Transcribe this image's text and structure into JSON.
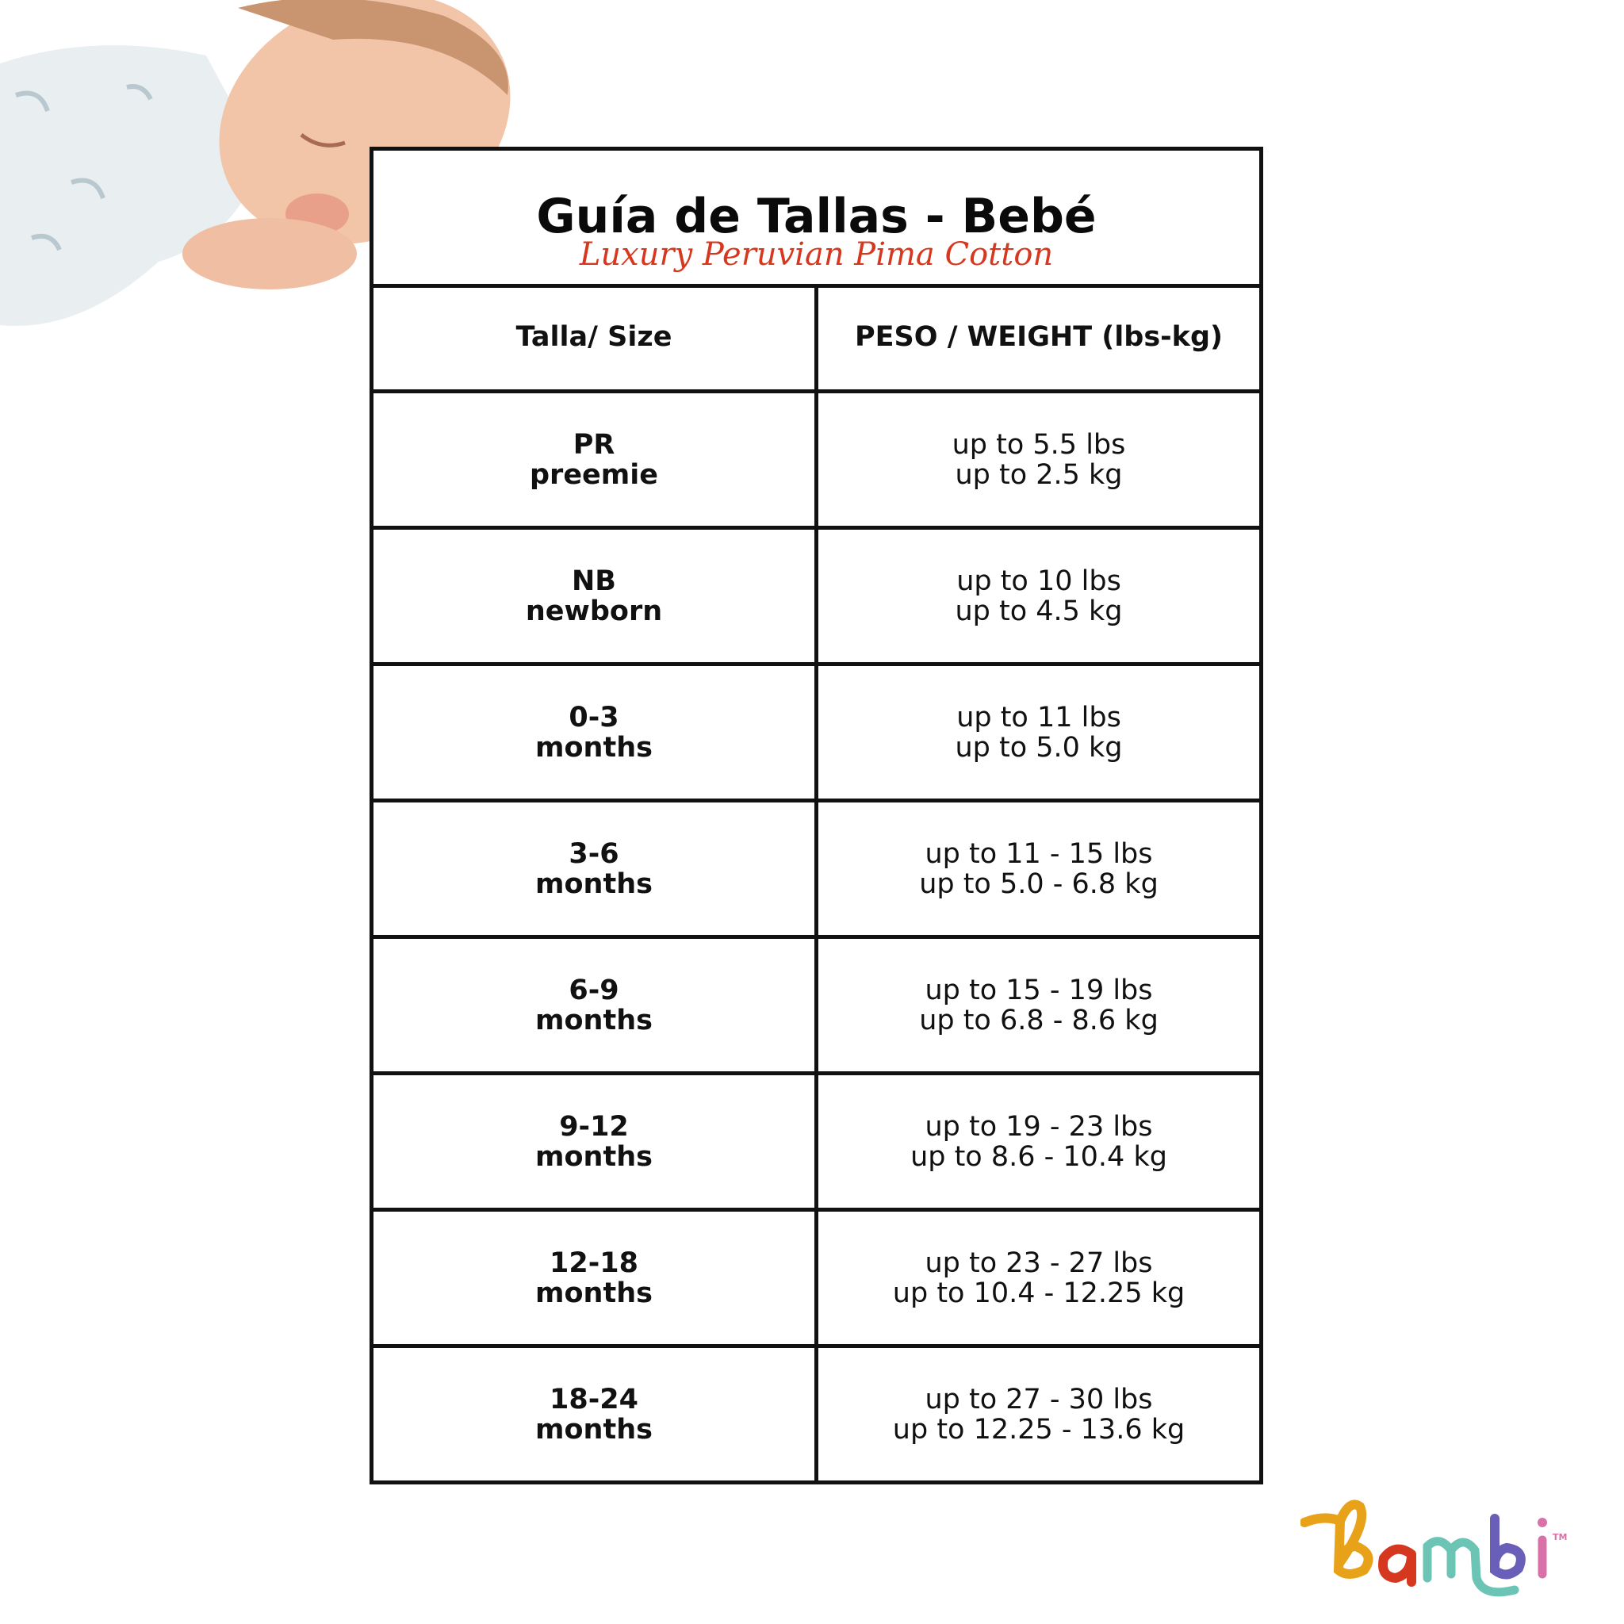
{
  "title": "Guía de Tallas - Bebé",
  "subtitle": "Luxury Peruvian Pima Cotton",
  "headers": {
    "size": "Talla/ Size",
    "weight": "PESO / WEIGHT (lbs-kg)"
  },
  "rows": [
    {
      "size": "PR",
      "size_sub": "preemie",
      "lbs": "up to 5.5 lbs",
      "kg": "up to 2.5 kg"
    },
    {
      "size": "NB",
      "size_sub": "newborn",
      "lbs": "up to 10 lbs",
      "kg": "up to 4.5 kg"
    },
    {
      "size": "0-3",
      "size_sub": "months",
      "lbs": "up to 11 lbs",
      "kg": "up to 5.0 kg"
    },
    {
      "size": "3-6",
      "size_sub": "months",
      "lbs": "up to 11 - 15 lbs",
      "kg": "up to 5.0 - 6.8 kg"
    },
    {
      "size": "6-9",
      "size_sub": "months",
      "lbs": "up to 15 - 19 lbs",
      "kg": "up to 6.8 - 8.6 kg"
    },
    {
      "size": "9-12",
      "size_sub": "months",
      "lbs": "up to 19 - 23 lbs",
      "kg": "up to 8.6 - 10.4 kg"
    },
    {
      "size": "12-18",
      "size_sub": "months",
      "lbs": "up to 23 - 27 lbs",
      "kg": "up to 10.4 - 12.25 kg"
    },
    {
      "size": "18-24",
      "size_sub": "months",
      "lbs": "up to 27 - 30 lbs",
      "kg": "up to 12.25 - 13.6 kg"
    }
  ],
  "logo": {
    "text": "bambi",
    "tm": "TM",
    "colors": [
      "#e8a21a",
      "#d6381f",
      "#6cc5b4",
      "#6a5fb8",
      "#d871a8"
    ]
  },
  "colors": {
    "subtitle": "#d6381f",
    "border": "#111111"
  }
}
